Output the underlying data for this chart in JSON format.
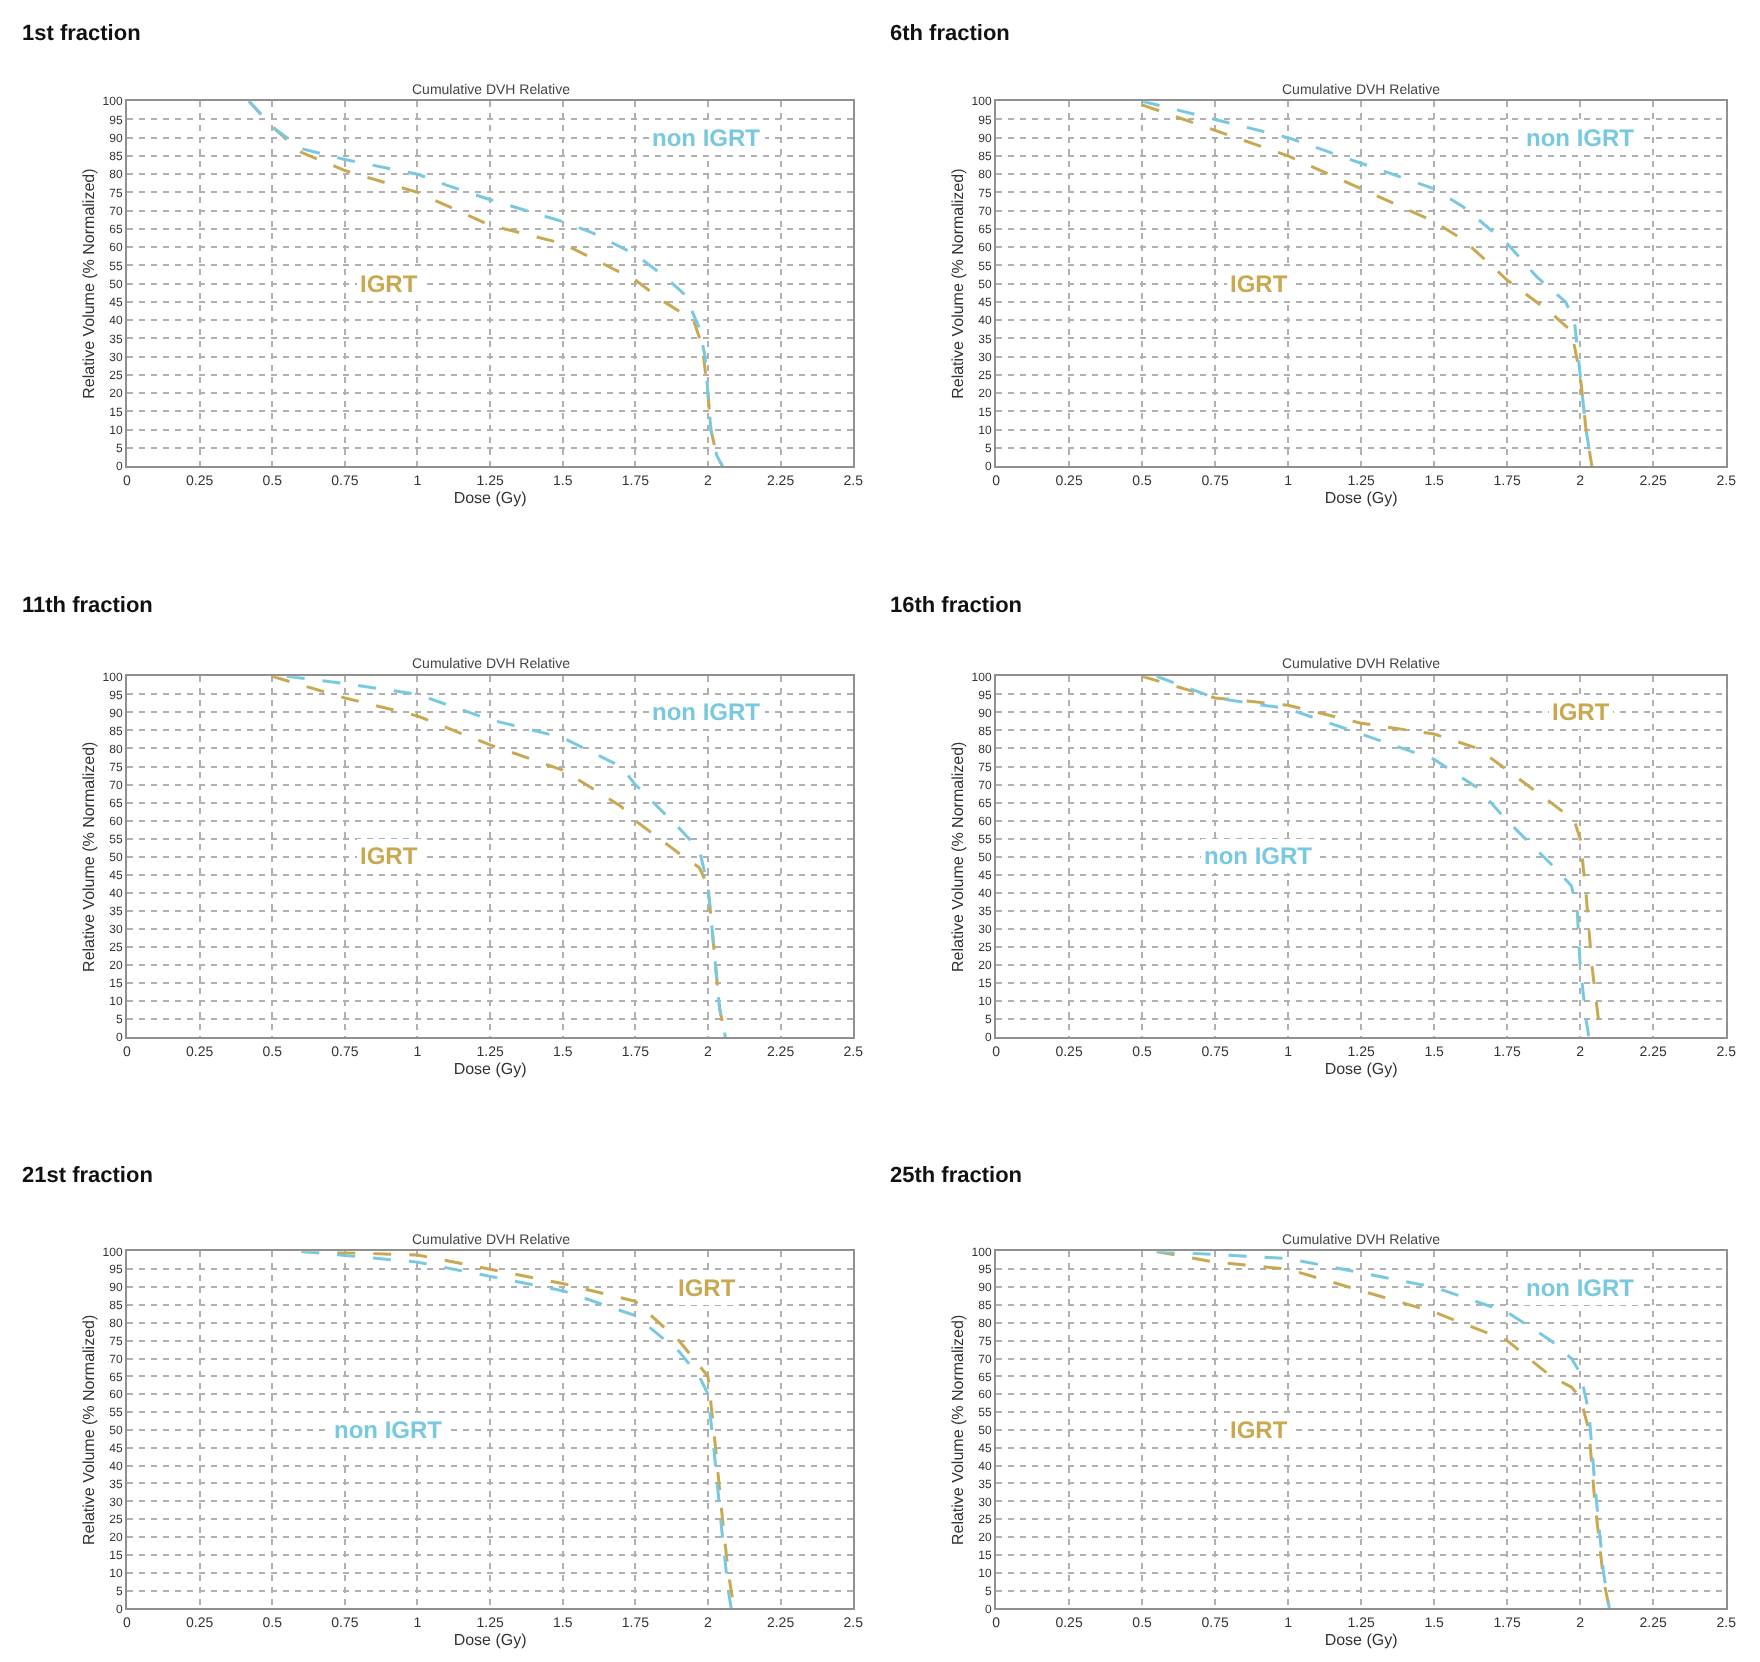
{
  "chart_data": [
    {
      "type": "line",
      "title": "1st fraction",
      "subtitle": "Cumulative DVH Relative",
      "xlabel": "Dose (Gy)",
      "ylabel": "Relative Volume (% Normalized)",
      "xlim": [
        0,
        2.5
      ],
      "xticks": [
        0,
        0.25,
        0.5,
        0.75,
        1,
        1.25,
        1.5,
        1.75,
        2,
        2.25,
        2.5
      ],
      "ylim": [
        0,
        100
      ],
      "yticks": [
        0,
        5,
        10,
        15,
        20,
        25,
        30,
        35,
        40,
        45,
        50,
        55,
        60,
        65,
        70,
        75,
        80,
        85,
        90,
        95,
        100
      ],
      "grid": true,
      "line_style": "dashed",
      "series": [
        {
          "name": "IGRT",
          "color": "#c8a850",
          "x": [
            0.42,
            0.5,
            0.6,
            0.75,
            1,
            1.25,
            1.5,
            1.6,
            1.75,
            1.85,
            1.95,
            1.98,
            2.0,
            2.01,
            2.03,
            2.05
          ],
          "values": [
            100,
            93,
            86,
            81,
            75,
            66,
            61,
            57,
            51,
            45,
            40,
            33,
            20,
            10,
            3,
            0
          ]
        },
        {
          "name": "non IGRT",
          "color": "#78c8e0",
          "x": [
            0.42,
            0.5,
            0.6,
            0.75,
            1,
            1.1,
            1.25,
            1.5,
            1.6,
            1.75,
            1.85,
            1.92,
            1.97,
            1.99,
            2.0,
            2.01,
            2.03,
            2.05
          ],
          "values": [
            100,
            93,
            87,
            84,
            80,
            77,
            73,
            67,
            64,
            58,
            52,
            47,
            38,
            30,
            20,
            10,
            3,
            0
          ]
        }
      ]
    },
    {
      "type": "line",
      "title": "6th fraction",
      "subtitle": "Cumulative DVH Relative",
      "xlabel": "Dose (Gy)",
      "ylabel": "Relative Volume (% Normalized)",
      "xlim": [
        0,
        2.5
      ],
      "xticks": [
        0,
        0.25,
        0.5,
        0.75,
        1,
        1.25,
        1.5,
        1.75,
        2,
        2.25,
        2.5
      ],
      "ylim": [
        0,
        100
      ],
      "yticks": [
        0,
        5,
        10,
        15,
        20,
        25,
        30,
        35,
        40,
        45,
        50,
        55,
        60,
        65,
        70,
        75,
        80,
        85,
        90,
        95,
        100
      ],
      "grid": true,
      "line_style": "dashed",
      "series": [
        {
          "name": "IGRT",
          "color": "#c8a850",
          "x": [
            0.5,
            0.75,
            1,
            1.25,
            1.5,
            1.6,
            1.75,
            1.9,
            1.97,
            2.0,
            2.02,
            2.04
          ],
          "values": [
            99,
            92,
            85,
            76,
            67,
            62,
            51,
            42,
            37,
            25,
            10,
            0
          ]
        },
        {
          "name": "non IGRT",
          "color": "#78c8e0",
          "x": [
            0.5,
            0.75,
            1,
            1.25,
            1.5,
            1.6,
            1.75,
            1.85,
            1.95,
            1.98,
            2.0,
            2.02,
            2.04
          ],
          "values": [
            100,
            95,
            90,
            83,
            76,
            71,
            61,
            52,
            45,
            40,
            25,
            10,
            0
          ]
        }
      ]
    },
    {
      "type": "line",
      "title": "11th fraction",
      "subtitle": "Cumulative DVH Relative",
      "xlabel": "Dose (Gy)",
      "ylabel": "Relative Volume (% Normalized)",
      "xlim": [
        0,
        2.5
      ],
      "xticks": [
        0,
        0.25,
        0.5,
        0.75,
        1,
        1.25,
        1.5,
        1.75,
        2,
        2.25,
        2.5
      ],
      "ylim": [
        0,
        100
      ],
      "yticks": [
        0,
        5,
        10,
        15,
        20,
        25,
        30,
        35,
        40,
        45,
        50,
        55,
        60,
        65,
        70,
        75,
        80,
        85,
        90,
        95,
        100
      ],
      "grid": true,
      "line_style": "dashed",
      "series": [
        {
          "name": "IGRT",
          "color": "#c8a850",
          "x": [
            0.5,
            0.75,
            1,
            1.25,
            1.5,
            1.7,
            1.75,
            1.9,
            1.97,
            2.0,
            2.02,
            2.04,
            2.06
          ],
          "values": [
            100,
            94,
            89,
            81,
            74,
            64,
            60,
            51,
            47,
            42,
            25,
            8,
            0
          ]
        },
        {
          "name": "non IGRT",
          "color": "#78c8e0",
          "x": [
            0.55,
            0.75,
            1,
            1.25,
            1.5,
            1.7,
            1.75,
            1.9,
            1.97,
            2.0,
            2.02,
            2.04,
            2.06
          ],
          "values": [
            100,
            98,
            95,
            88,
            83,
            75,
            70,
            58,
            52,
            42,
            25,
            8,
            0
          ]
        }
      ]
    },
    {
      "type": "line",
      "title": "16th fraction",
      "subtitle": "Cumulative DVH Relative",
      "xlabel": "Dose (Gy)",
      "ylabel": "Relative Volume (% Normalized)",
      "xlim": [
        0,
        2.5
      ],
      "xticks": [
        0,
        0.25,
        0.5,
        0.75,
        1,
        1.25,
        1.5,
        1.75,
        2,
        2.25,
        2.5
      ],
      "ylim": [
        0,
        100
      ],
      "yticks": [
        0,
        5,
        10,
        15,
        20,
        25,
        30,
        35,
        40,
        45,
        50,
        55,
        60,
        65,
        70,
        75,
        80,
        85,
        90,
        95,
        100
      ],
      "grid": true,
      "line_style": "dashed",
      "series": [
        {
          "name": "IGRT",
          "color": "#c8a850",
          "x": [
            0.5,
            0.75,
            1,
            1.25,
            1.5,
            1.65,
            1.75,
            1.9,
            1.98,
            2.0,
            2.02,
            2.04,
            2.07
          ],
          "values": [
            100,
            94,
            92,
            87,
            84,
            80,
            74,
            65,
            60,
            55,
            40,
            20,
            0
          ]
        },
        {
          "name": "non IGRT",
          "color": "#78c8e0",
          "x": [
            0.55,
            0.75,
            1,
            1.25,
            1.5,
            1.65,
            1.75,
            1.9,
            1.97,
            1.99,
            2.0,
            2.02,
            2.03
          ],
          "values": [
            100,
            94,
            91,
            84,
            77,
            69,
            60,
            48,
            42,
            35,
            20,
            5,
            0
          ]
        }
      ]
    },
    {
      "type": "line",
      "title": "21st fraction",
      "subtitle": "Cumulative DVH Relative",
      "xlabel": "Dose (Gy)",
      "ylabel": "Relative Volume (% Normalized)",
      "xlim": [
        0,
        2.5
      ],
      "xticks": [
        0,
        0.25,
        0.5,
        0.75,
        1,
        1.25,
        1.5,
        1.75,
        2,
        2.25,
        2.5
      ],
      "ylim": [
        0,
        100
      ],
      "yticks": [
        0,
        5,
        10,
        15,
        20,
        25,
        30,
        35,
        40,
        45,
        50,
        55,
        60,
        65,
        70,
        75,
        80,
        85,
        90,
        95,
        100
      ],
      "grid": true,
      "line_style": "dashed",
      "series": [
        {
          "name": "IGRT",
          "color": "#c8a850",
          "x": [
            0.6,
            1,
            1.25,
            1.5,
            1.75,
            1.9,
            1.97,
            2.0,
            2.02,
            2.05,
            2.07,
            2.09
          ],
          "values": [
            100,
            99,
            95,
            91,
            86,
            75,
            68,
            65,
            50,
            25,
            10,
            0
          ]
        },
        {
          "name": "non IGRT",
          "color": "#78c8e0",
          "x": [
            0.6,
            1,
            1.25,
            1.5,
            1.75,
            1.9,
            1.97,
            2.0,
            2.02,
            2.05,
            2.07,
            2.08
          ],
          "values": [
            100,
            97,
            93,
            89,
            82,
            72,
            65,
            60,
            45,
            20,
            5,
            0
          ]
        }
      ]
    },
    {
      "type": "line",
      "title": "25th fraction",
      "subtitle": "Cumulative DVH Relative",
      "xlabel": "Dose (Gy)",
      "ylabel": "Relative Volume (% Normalized)",
      "xlim": [
        0,
        2.5
      ],
      "xticks": [
        0,
        0.25,
        0.5,
        0.75,
        1,
        1.25,
        1.5,
        1.75,
        2,
        2.25,
        2.5
      ],
      "ylim": [
        0,
        100
      ],
      "yticks": [
        0,
        5,
        10,
        15,
        20,
        25,
        30,
        35,
        40,
        45,
        50,
        55,
        60,
        65,
        70,
        75,
        80,
        85,
        90,
        95,
        100
      ],
      "grid": true,
      "line_style": "dashed",
      "series": [
        {
          "name": "IGRT",
          "color": "#c8a850",
          "x": [
            0.55,
            0.75,
            1,
            1.25,
            1.5,
            1.75,
            1.9,
            1.97,
            2.0,
            2.03,
            2.05,
            2.08,
            2.1
          ],
          "values": [
            100,
            97,
            95,
            89,
            83,
            75,
            65,
            62,
            59,
            50,
            30,
            8,
            0
          ]
        },
        {
          "name": "non IGRT",
          "color": "#78c8e0",
          "x": [
            0.55,
            1,
            1.25,
            1.5,
            1.75,
            1.9,
            1.97,
            2.0,
            2.03,
            2.05,
            2.08,
            2.1
          ],
          "values": [
            100,
            98,
            94,
            90,
            83,
            75,
            70,
            66,
            55,
            35,
            10,
            0
          ]
        }
      ]
    }
  ]
}
